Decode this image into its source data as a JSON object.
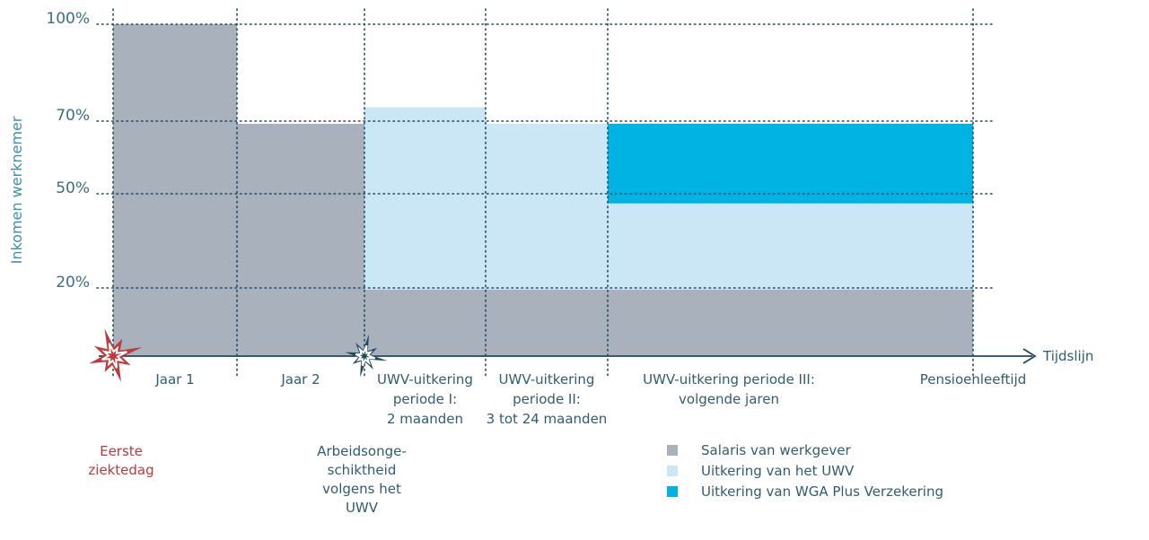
{
  "chart_data": {
    "type": "bar",
    "ylabel": "Inkomen werknemer",
    "xlabel": "Tijdslijn",
    "y_ticks": [
      "100%",
      "70%",
      "50%",
      "20%"
    ],
    "y_tick_values": [
      100,
      70,
      50,
      20
    ],
    "ylim": [
      -5,
      102
    ],
    "segments": [
      {
        "phase": "Jaar 1",
        "start": 0,
        "end": 1,
        "salaris": 100,
        "uwv": 0,
        "wga": 0
      },
      {
        "phase": "Jaar 2",
        "start": 1,
        "end": 2,
        "salaris": 70,
        "uwv": 0,
        "wga": 0
      },
      {
        "phase": "UWV-uitkering periode I",
        "start": 2,
        "end": 3,
        "salaris": 20,
        "uwv": 55,
        "wga": 0
      },
      {
        "phase": "UWV-uitkering periode II",
        "start": 3,
        "end": 4,
        "salaris": 20,
        "uwv": 50,
        "wga": 0
      },
      {
        "phase": "UWV-uitkering periode III",
        "start": 4,
        "end": 7,
        "salaris": 20,
        "uwv": 26,
        "wga": 24
      }
    ],
    "phase_labels": [
      {
        "lines": [
          "Jaar 1"
        ],
        "at": 0.5
      },
      {
        "lines": [
          "Jaar 2"
        ],
        "at": 1.5
      },
      {
        "lines": [
          "UWV-uitkering",
          "periode I:",
          "2 maanden"
        ],
        "at": 2.5
      },
      {
        "lines": [
          "UWV-uitkering",
          "periode II:",
          "3 tot 24 maanden"
        ],
        "at": 3.5
      },
      {
        "lines": [
          "UWV-uitkering periode III:",
          "volgende jaren"
        ],
        "at": 5.0
      },
      {
        "lines": [
          "Pensioenleeftijd"
        ],
        "at": 7.0
      }
    ],
    "events": [
      {
        "lines": [
          "Eerste",
          "ziektedag"
        ],
        "at": 0,
        "color": "#c0393b"
      },
      {
        "lines": [
          "Arbeidsonge-",
          "schiktheid",
          "volgens het",
          "UWV"
        ],
        "at": 2,
        "color": "#1f4a60"
      }
    ],
    "legend": [
      {
        "label": "Salaris van werkgever",
        "color": "#a9b2bc"
      },
      {
        "label": "Uitkering van het UWV",
        "color": "#cbe6f4"
      },
      {
        "label": "Uitkering van WGA Plus Verzekering",
        "color": "#00b3e3"
      }
    ],
    "colors": {
      "salaris": "#a9b2bc",
      "uwv": "#cbe6f4",
      "wga": "#00b3e3",
      "axis": "#1f4a60",
      "grid": "#1f4a60"
    }
  }
}
